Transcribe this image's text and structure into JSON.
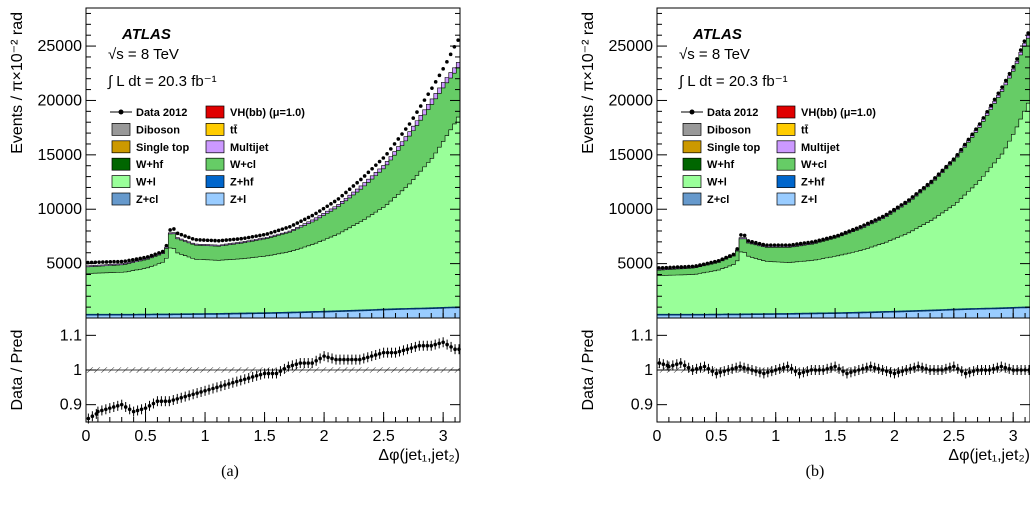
{
  "chart_data": [
    {
      "type": "area",
      "panel_caption": "(a)",
      "experiment": "ATLAS",
      "energy_text": "√s = 8 TeV",
      "lumi_text": "∫ L dt = 20.3 fb⁻¹",
      "xlabel": "Δφ(jet₁,jet₂)",
      "ylabel": "Events / π×10⁻² rad",
      "ratio_ylabel": "Data / Pred",
      "xlim": [
        0,
        3.14159
      ],
      "ylim": [
        0,
        28500
      ],
      "ratio_ylim": [
        0.85,
        1.15
      ],
      "x_ticks": [
        "0",
        "0.5",
        "1",
        "1.5",
        "2",
        "2.5",
        "3"
      ],
      "y_ticks": [
        "5000",
        "10000",
        "15000",
        "20000",
        "25000"
      ],
      "ratio_y_ticks": [
        "0.9",
        "1",
        "1.1"
      ],
      "legend": [
        {
          "label": "Data 2012",
          "kind": "data"
        },
        {
          "label": "VH(bb) (μ=1.0)",
          "color": "#e00000"
        },
        {
          "label": "Diboson",
          "color": "#999999"
        },
        {
          "label": "tt̄",
          "color": "#ffcc00"
        },
        {
          "label": "Single top",
          "color": "#cc9900"
        },
        {
          "label": "Multijet",
          "color": "#cc99ff"
        },
        {
          "label": "W+hf",
          "color": "#006600"
        },
        {
          "label": "W+cl",
          "color": "#66cc66"
        },
        {
          "label": "W+l",
          "color": "#99ff99"
        },
        {
          "label": "Z+hf",
          "color": "#0066cc"
        },
        {
          "label": "Z+cl",
          "color": "#6699cc"
        },
        {
          "label": "Z+l",
          "color": "#99ccff"
        }
      ],
      "x_anchor": [
        0,
        0.3,
        0.5,
        0.65,
        0.7,
        0.75,
        0.9,
        1.1,
        1.3,
        1.5,
        1.7,
        1.9,
        2.1,
        2.3,
        2.5,
        2.7,
        2.9,
        3.0,
        3.1,
        3.14159
      ],
      "series": [
        {
          "name": "Z+l",
          "values": [
            300,
            300,
            320,
            330,
            330,
            340,
            360,
            380,
            420,
            450,
            500,
            560,
            620,
            700,
            780,
            850,
            900,
            950,
            980,
            1000
          ]
        },
        {
          "name": "W+l",
          "values": [
            4100,
            4200,
            4600,
            5200,
            6700,
            6000,
            5400,
            5300,
            5450,
            5700,
            6100,
            6800,
            7700,
            8900,
            10300,
            12300,
            14800,
            16500,
            18200,
            19300
          ]
        },
        {
          "name": "W+cl",
          "values": [
            4700,
            4900,
            5400,
            6000,
            8100,
            7300,
            6700,
            6600,
            6900,
            7300,
            7900,
            8900,
            10200,
            11900,
            13900,
            16700,
            19800,
            21400,
            22800,
            23600
          ]
        },
        {
          "name": "Multijet",
          "values": [
            4800,
            5000,
            5500,
            6100,
            8200,
            7400,
            6800,
            6700,
            7000,
            7400,
            8000,
            9100,
            10400,
            12200,
            14200,
            17100,
            20300,
            21900,
            23300,
            24100
          ]
        },
        {
          "name": "Data 2012",
          "values": [
            5100,
            5200,
            5600,
            6200,
            8500,
            7800,
            7200,
            7100,
            7300,
            7700,
            8400,
            9500,
            10900,
            12800,
            14900,
            17800,
            21300,
            23200,
            25400,
            26000
          ]
        }
      ],
      "ratio": {
        "x": [
          0.02,
          0.1,
          0.2,
          0.3,
          0.4,
          0.5,
          0.6,
          0.7,
          0.8,
          0.9,
          1.0,
          1.1,
          1.2,
          1.3,
          1.4,
          1.5,
          1.6,
          1.7,
          1.8,
          1.9,
          2.0,
          2.1,
          2.2,
          2.3,
          2.4,
          2.5,
          2.6,
          2.7,
          2.8,
          2.9,
          3.0,
          3.1
        ],
        "values": [
          0.86,
          0.88,
          0.89,
          0.9,
          0.88,
          0.89,
          0.91,
          0.91,
          0.92,
          0.93,
          0.94,
          0.95,
          0.96,
          0.97,
          0.98,
          0.99,
          0.99,
          1.01,
          1.02,
          1.02,
          1.04,
          1.03,
          1.03,
          1.03,
          1.04,
          1.05,
          1.05,
          1.06,
          1.07,
          1.07,
          1.08,
          1.06
        ]
      }
    },
    {
      "type": "area",
      "panel_caption": "(b)",
      "experiment": "ATLAS",
      "energy_text": "√s = 8 TeV",
      "lumi_text": "∫ L dt = 20.3 fb⁻¹",
      "xlabel": "Δφ(jet₁,jet₂)",
      "ylabel": "Events / π×10⁻² rad",
      "ratio_ylabel": "Data / Pred",
      "xlim": [
        0,
        3.14159
      ],
      "ylim": [
        0,
        28500
      ],
      "ratio_ylim": [
        0.85,
        1.15
      ],
      "x_ticks": [
        "0",
        "0.5",
        "1",
        "1.5",
        "2",
        "2.5",
        "3"
      ],
      "y_ticks": [
        "5000",
        "10000",
        "15000",
        "20000",
        "25000"
      ],
      "ratio_y_ticks": [
        "0.9",
        "1",
        "1.1"
      ],
      "legend": [
        {
          "label": "Data 2012",
          "kind": "data"
        },
        {
          "label": "VH(bb) (μ=1.0)",
          "color": "#e00000"
        },
        {
          "label": "Diboson",
          "color": "#999999"
        },
        {
          "label": "tt̄",
          "color": "#ffcc00"
        },
        {
          "label": "Single top",
          "color": "#cc9900"
        },
        {
          "label": "Multijet",
          "color": "#cc99ff"
        },
        {
          "label": "W+hf",
          "color": "#006600"
        },
        {
          "label": "W+cl",
          "color": "#66cc66"
        },
        {
          "label": "W+l",
          "color": "#99ff99"
        },
        {
          "label": "Z+hf",
          "color": "#0066cc"
        },
        {
          "label": "Z+cl",
          "color": "#6699cc"
        },
        {
          "label": "Z+l",
          "color": "#99ccff"
        }
      ],
      "x_anchor": [
        0,
        0.3,
        0.5,
        0.65,
        0.7,
        0.75,
        0.9,
        1.1,
        1.3,
        1.5,
        1.7,
        1.9,
        2.1,
        2.3,
        2.5,
        2.7,
        2.9,
        3.0,
        3.1,
        3.14159
      ],
      "series": [
        {
          "name": "Z+l",
          "values": [
            300,
            300,
            320,
            330,
            330,
            340,
            360,
            380,
            420,
            450,
            500,
            560,
            620,
            700,
            780,
            850,
            900,
            950,
            980,
            1000
          ]
        },
        {
          "name": "W+l",
          "values": [
            3900,
            4000,
            4400,
            5000,
            6300,
            5700,
            5200,
            5100,
            5300,
            5700,
            6200,
            6900,
            7800,
            9000,
            10500,
            12600,
            15200,
            17200,
            19500,
            20500
          ]
        },
        {
          "name": "W+cl",
          "values": [
            4400,
            4600,
            5100,
            5800,
            7600,
            6900,
            6500,
            6500,
            6800,
            7400,
            8200,
            9200,
            10600,
            12400,
            14600,
            17500,
            21000,
            23000,
            25500,
            26400
          ]
        },
        {
          "name": "Multijet",
          "values": [
            4500,
            4700,
            5200,
            5900,
            7700,
            7000,
            6600,
            6600,
            6900,
            7500,
            8300,
            9300,
            10700,
            12500,
            14700,
            17700,
            21200,
            23200,
            25800,
            26700
          ]
        },
        {
          "name": "Data 2012",
          "values": [
            4600,
            4750,
            5250,
            5950,
            8000,
            7100,
            6700,
            6700,
            7000,
            7550,
            8400,
            9400,
            10800,
            12600,
            14800,
            17800,
            21400,
            23400,
            26000,
            26800
          ]
        }
      ],
      "ratio": {
        "x": [
          0.02,
          0.1,
          0.2,
          0.3,
          0.4,
          0.5,
          0.6,
          0.7,
          0.8,
          0.9,
          1.0,
          1.1,
          1.2,
          1.3,
          1.4,
          1.5,
          1.6,
          1.7,
          1.8,
          1.9,
          2.0,
          2.1,
          2.2,
          2.3,
          2.4,
          2.5,
          2.6,
          2.7,
          2.8,
          2.9,
          3.0,
          3.1
        ],
        "values": [
          1.02,
          1.01,
          1.02,
          1.0,
          1.01,
          0.99,
          1.0,
          1.01,
          1.0,
          0.99,
          1.0,
          1.01,
          0.99,
          1.0,
          1.0,
          1.01,
          0.99,
          1.0,
          1.01,
          1.0,
          0.99,
          1.0,
          1.01,
          1.0,
          1.0,
          1.01,
          0.99,
          1.0,
          1.0,
          1.01,
          1.0,
          1.0
        ]
      }
    }
  ]
}
